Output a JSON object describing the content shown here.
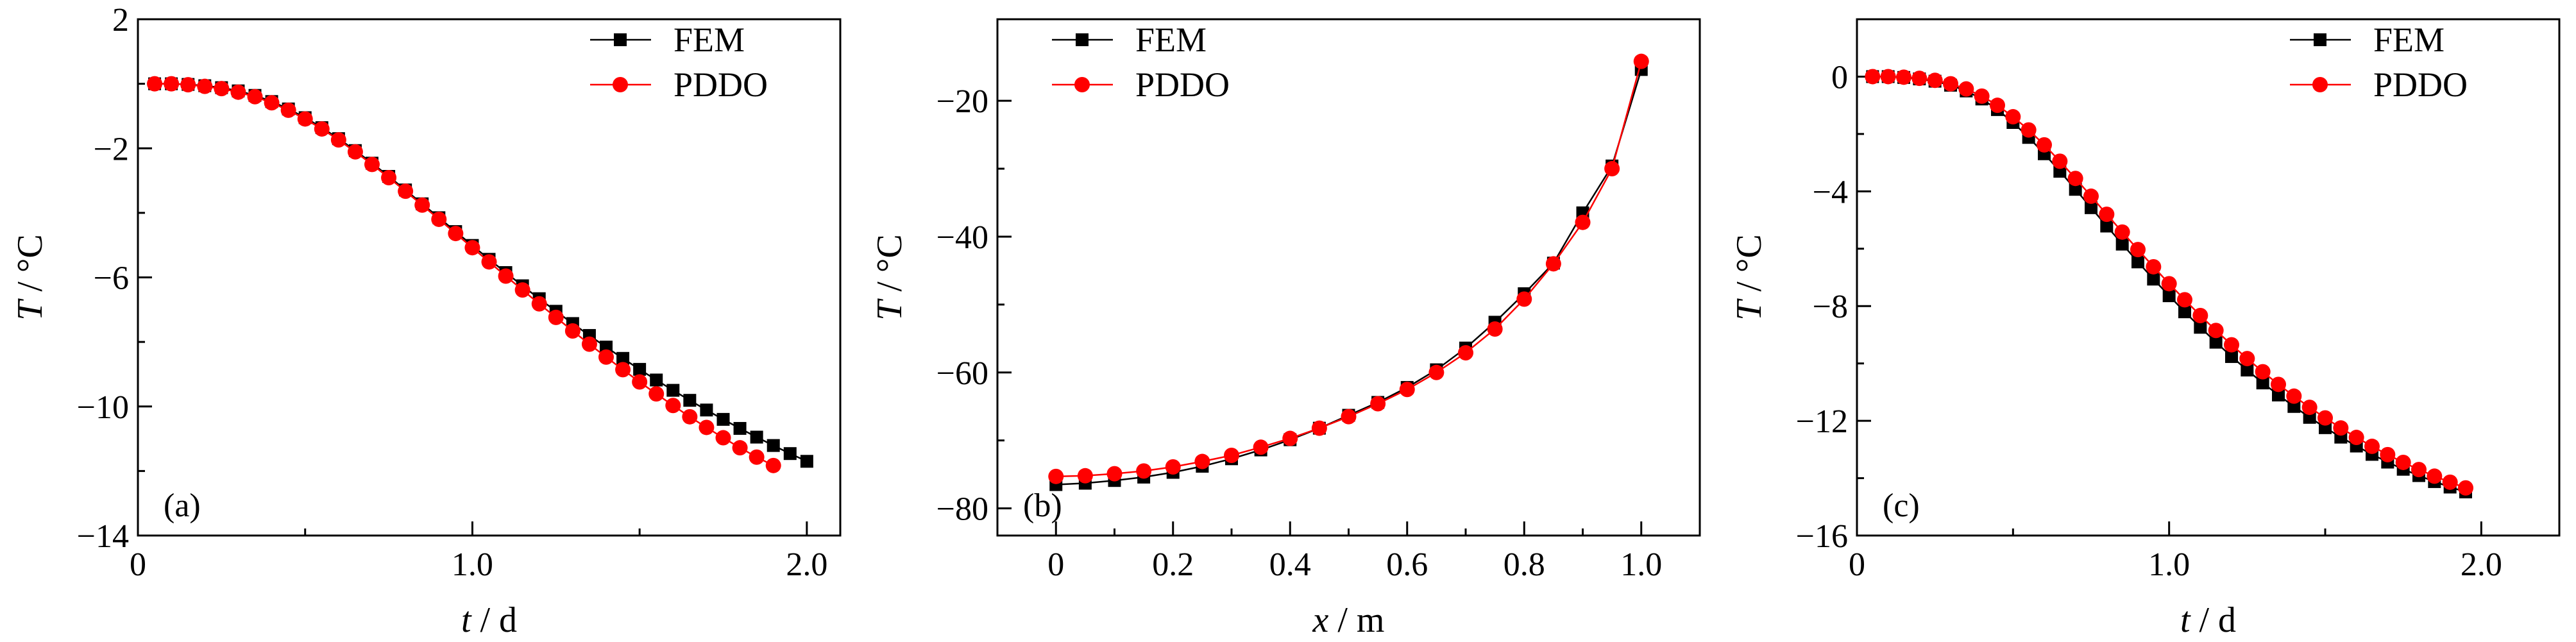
{
  "colors": {
    "fem": "#000000",
    "pddo": "#ff0000",
    "axis": "#000000",
    "background": "#ffffff"
  },
  "chart_data": [
    {
      "type": "line",
      "panel_label": "(a)",
      "xlabel_var": "t",
      "xlabel_unit": " / d",
      "ylabel_var": "T",
      "ylabel_unit": " / °C",
      "xlim": [
        0,
        2.1
      ],
      "ylim": [
        -14,
        2
      ],
      "xticks": [
        0,
        1.0,
        2.0
      ],
      "xtick_labels": [
        "0",
        "1.0",
        "2.0"
      ],
      "yticks": [
        2,
        -2,
        -6,
        -10,
        -14
      ],
      "ytick_labels": [
        "2",
        "−2",
        "−6",
        "−10",
        "−14"
      ],
      "legend_position": "top-right",
      "series": [
        {
          "name": "FEM",
          "marker": "square",
          "color": "#000000",
          "x": [
            0.05,
            0.1,
            0.15,
            0.2,
            0.25,
            0.3,
            0.35,
            0.4,
            0.45,
            0.5,
            0.55,
            0.6,
            0.65,
            0.7,
            0.75,
            0.8,
            0.85,
            0.9,
            0.95,
            1.0,
            1.05,
            1.1,
            1.15,
            1.2,
            1.25,
            1.3,
            1.35,
            1.4,
            1.45,
            1.5,
            1.55,
            1.6,
            1.65,
            1.7,
            1.75,
            1.8,
            1.85,
            1.9,
            1.95,
            2.0
          ],
          "values": [
            0.0,
            0.0,
            -0.02,
            -0.06,
            -0.12,
            -0.22,
            -0.36,
            -0.55,
            -0.78,
            -1.05,
            -1.36,
            -1.7,
            -2.07,
            -2.46,
            -2.87,
            -3.29,
            -3.72,
            -4.15,
            -4.58,
            -5.01,
            -5.44,
            -5.85,
            -6.26,
            -6.66,
            -7.05,
            -7.43,
            -7.8,
            -8.16,
            -8.51,
            -8.85,
            -9.18,
            -9.5,
            -9.81,
            -10.11,
            -10.4,
            -10.68,
            -10.95,
            -11.21,
            -11.46,
            -11.7
          ]
        },
        {
          "name": "PDDO",
          "marker": "circle",
          "color": "#ff0000",
          "x": [
            0.05,
            0.1,
            0.15,
            0.2,
            0.25,
            0.3,
            0.35,
            0.4,
            0.45,
            0.5,
            0.55,
            0.6,
            0.65,
            0.7,
            0.75,
            0.8,
            0.85,
            0.9,
            0.95,
            1.0,
            1.05,
            1.1,
            1.15,
            1.2,
            1.25,
            1.3,
            1.35,
            1.4,
            1.45,
            1.5,
            1.55,
            1.6,
            1.65,
            1.7,
            1.75,
            1.8,
            1.85,
            1.9
          ],
          "values": [
            0.0,
            0.0,
            -0.03,
            -0.08,
            -0.15,
            -0.26,
            -0.4,
            -0.59,
            -0.82,
            -1.09,
            -1.4,
            -1.74,
            -2.11,
            -2.5,
            -2.91,
            -3.33,
            -3.76,
            -4.2,
            -4.64,
            -5.08,
            -5.52,
            -5.96,
            -6.39,
            -6.82,
            -7.24,
            -7.66,
            -8.07,
            -8.47,
            -8.86,
            -9.24,
            -9.61,
            -9.97,
            -10.32,
            -10.65,
            -10.97,
            -11.28,
            -11.57,
            -11.83
          ]
        }
      ]
    },
    {
      "type": "line",
      "panel_label": "(b)",
      "xlabel_var": "x",
      "xlabel_unit": " / m",
      "ylabel_var": "T",
      "ylabel_unit": " / °C",
      "xlim": [
        -0.1,
        1.1
      ],
      "ylim": [
        -84,
        -8
      ],
      "xticks": [
        0,
        0.2,
        0.4,
        0.6,
        0.8,
        1.0
      ],
      "xtick_labels": [
        "0",
        "0.2",
        "0.4",
        "0.6",
        "0.8",
        "1.0"
      ],
      "yticks": [
        -20,
        -40,
        -60,
        -80
      ],
      "ytick_labels": [
        "−20",
        "−40",
        "−60",
        "−80"
      ],
      "legend_position": "top-left",
      "series": [
        {
          "name": "FEM",
          "marker": "square",
          "color": "#000000",
          "x": [
            0,
            0.05,
            0.1,
            0.15,
            0.2,
            0.25,
            0.3,
            0.35,
            0.4,
            0.45,
            0.5,
            0.55,
            0.6,
            0.65,
            0.7,
            0.75,
            0.8,
            0.85,
            0.9,
            0.95,
            1.0
          ],
          "values": [
            -76.5,
            -76.3,
            -75.9,
            -75.4,
            -74.7,
            -73.8,
            -72.7,
            -71.4,
            -69.9,
            -68.2,
            -66.3,
            -64.4,
            -62.2,
            -59.6,
            -56.4,
            -52.6,
            -48.4,
            -43.9,
            -36.5,
            -29.6,
            -15.4
          ]
        },
        {
          "name": "PDDO",
          "marker": "circle",
          "color": "#ff0000",
          "x": [
            0,
            0.05,
            0.1,
            0.15,
            0.2,
            0.25,
            0.3,
            0.35,
            0.4,
            0.45,
            0.5,
            0.55,
            0.6,
            0.65,
            0.7,
            0.75,
            0.8,
            0.85,
            0.9,
            0.95,
            1.0
          ],
          "values": [
            -75.3,
            -75.2,
            -74.9,
            -74.5,
            -73.9,
            -73.1,
            -72.2,
            -71.0,
            -69.7,
            -68.2,
            -66.5,
            -64.6,
            -62.5,
            -60.0,
            -57.1,
            -53.6,
            -49.2,
            -44.0,
            -37.9,
            -30.0,
            -14.2
          ]
        }
      ]
    },
    {
      "type": "line",
      "panel_label": "(c)",
      "xlabel_var": "t",
      "xlabel_unit": " / d",
      "ylabel_var": "T",
      "ylabel_unit": " / °C",
      "xlim": [
        0,
        2.25
      ],
      "ylim": [
        -16,
        2
      ],
      "xticks": [
        0,
        1.0,
        2.0
      ],
      "xtick_labels": [
        "0",
        "1.0",
        "2.0"
      ],
      "yticks": [
        0,
        -4,
        -8,
        -12,
        -16
      ],
      "ytick_labels": [
        "0",
        "−4",
        "−8",
        "−12",
        "−16"
      ],
      "legend_position": "top-right",
      "series": [
        {
          "name": "FEM",
          "marker": "square",
          "color": "#000000",
          "x": [
            0.05,
            0.1,
            0.15,
            0.2,
            0.25,
            0.3,
            0.35,
            0.4,
            0.45,
            0.5,
            0.55,
            0.6,
            0.65,
            0.7,
            0.75,
            0.8,
            0.85,
            0.9,
            0.95,
            1.0,
            1.05,
            1.1,
            1.15,
            1.2,
            1.25,
            1.3,
            1.35,
            1.4,
            1.45,
            1.5,
            1.55,
            1.6,
            1.65,
            1.7,
            1.75,
            1.8,
            1.85,
            1.9,
            1.95
          ],
          "values": [
            0.0,
            0.0,
            -0.03,
            -0.08,
            -0.16,
            -0.3,
            -0.5,
            -0.78,
            -1.15,
            -1.6,
            -2.12,
            -2.69,
            -3.3,
            -3.93,
            -4.57,
            -5.21,
            -5.84,
            -6.46,
            -7.06,
            -7.64,
            -8.2,
            -8.74,
            -9.26,
            -9.76,
            -10.23,
            -10.68,
            -11.1,
            -11.5,
            -11.88,
            -12.24,
            -12.57,
            -12.88,
            -13.17,
            -13.44,
            -13.69,
            -13.91,
            -14.12,
            -14.31,
            -14.48
          ]
        },
        {
          "name": "PDDO",
          "marker": "circle",
          "color": "#ff0000",
          "x": [
            0.05,
            0.1,
            0.15,
            0.2,
            0.25,
            0.3,
            0.35,
            0.4,
            0.45,
            0.5,
            0.55,
            0.6,
            0.65,
            0.7,
            0.75,
            0.8,
            0.85,
            0.9,
            0.95,
            1.0,
            1.05,
            1.1,
            1.15,
            1.2,
            1.25,
            1.3,
            1.35,
            1.4,
            1.45,
            1.5,
            1.55,
            1.6,
            1.65,
            1.7,
            1.75,
            1.8,
            1.85,
            1.9,
            1.95
          ],
          "values": [
            0.0,
            0.0,
            -0.02,
            -0.06,
            -0.13,
            -0.25,
            -0.43,
            -0.68,
            -1.0,
            -1.4,
            -1.86,
            -2.38,
            -2.95,
            -3.55,
            -4.17,
            -4.8,
            -5.42,
            -6.03,
            -6.63,
            -7.22,
            -7.78,
            -8.33,
            -8.85,
            -9.35,
            -9.83,
            -10.29,
            -10.73,
            -11.14,
            -11.53,
            -11.9,
            -12.25,
            -12.58,
            -12.89,
            -13.18,
            -13.45,
            -13.7,
            -13.93,
            -14.14,
            -14.34
          ]
        }
      ]
    }
  ]
}
